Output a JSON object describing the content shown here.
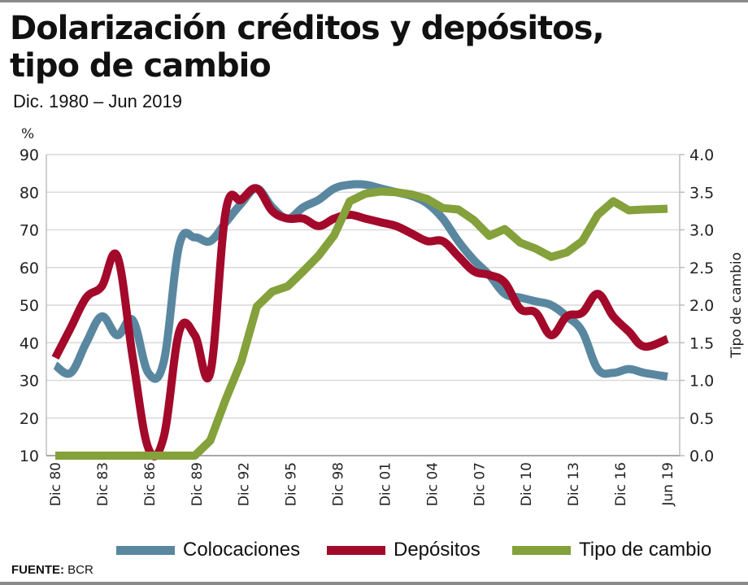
{
  "title_line1": "Dolarización créditos y depósitos,",
  "title_line2": "tipo de cambio",
  "subtitle": "Dic. 1980 – Jun 2019",
  "source_label": "FUENTE:",
  "source_value": " BCR",
  "colors": {
    "colocaciones": "#5a87a0",
    "depositos": "#a3092a",
    "tipo_cambio": "#84a13b",
    "grid": "#d9d9d9",
    "axis": "#bdbdbd"
  },
  "chart_data": {
    "type": "line",
    "title": "Dolarización créditos y depósitos, tipo de cambio",
    "subtitle": "Dic. 1980 – Jun 2019",
    "ylabel_left": "%",
    "ylabel_right": "Tipo de cambio",
    "ylim_left": [
      10,
      90
    ],
    "ylim_right": [
      0.0,
      4.0
    ],
    "yticks_left": [
      "90",
      "80",
      "70",
      "60",
      "50",
      "40",
      "30",
      "20",
      "10"
    ],
    "yticks_right": [
      "4.0",
      "3.5",
      "3.0",
      "2.5",
      "2.0",
      "1.5",
      "1.0",
      "0.5",
      "0.0"
    ],
    "xticks": [
      "Dic 80",
      "Dic 83",
      "Dic 86",
      "Dic 89",
      "Dic 92",
      "Dic 95",
      "Dic 98",
      "Dic 01",
      "Dic 04",
      "Dic 07",
      "Dic 10",
      "Dic 13",
      "Dic 16",
      "Jun 19"
    ],
    "grid": true,
    "legend_position": "bottom",
    "x": [
      1980,
      1981,
      1982,
      1983,
      1984,
      1985,
      1986,
      1987,
      1988,
      1989,
      1990,
      1991,
      1992,
      1993,
      1994,
      1995,
      1996,
      1997,
      1998,
      1999,
      2000,
      2001,
      2002,
      2003,
      2004,
      2005,
      2006,
      2007,
      2008,
      2009,
      2010,
      2011,
      2012,
      2013,
      2014,
      2015,
      2016,
      2017,
      2018,
      2019.5
    ],
    "series": [
      {
        "name": "Colocaciones",
        "axis": "left",
        "color_key": "colocaciones",
        "values": [
          34,
          32,
          40,
          47,
          42,
          46,
          32,
          35,
          66,
          68,
          67,
          72,
          77,
          81,
          76,
          73,
          76,
          78,
          81,
          82,
          82,
          81,
          80,
          79,
          77,
          73,
          67,
          62,
          58,
          53,
          52,
          51,
          50,
          47,
          43,
          33,
          32,
          33,
          32,
          31
        ]
      },
      {
        "name": "Depósitos",
        "axis": "left",
        "color_key": "depositos",
        "values": [
          36,
          44,
          52,
          55,
          63,
          36,
          12,
          15,
          43,
          42,
          32,
          75,
          78,
          81,
          75,
          73,
          73,
          71,
          73,
          74,
          73,
          72,
          71,
          69,
          67,
          67,
          63,
          59,
          58,
          56,
          49,
          48,
          42,
          47,
          48,
          53,
          47,
          43,
          39,
          41
        ]
      },
      {
        "name": "Tipo de cambio",
        "axis": "right",
        "color_key": "tipo_cambio",
        "values": [
          0.0,
          0.0,
          0.0,
          0.0,
          0.0,
          0.0,
          0.0,
          0.0,
          0.0,
          0.0,
          0.2,
          0.75,
          1.25,
          1.98,
          2.18,
          2.25,
          2.45,
          2.66,
          2.93,
          3.38,
          3.48,
          3.51,
          3.5,
          3.47,
          3.41,
          3.29,
          3.27,
          3.13,
          2.92,
          3.01,
          2.83,
          2.75,
          2.64,
          2.7,
          2.85,
          3.2,
          3.38,
          3.26,
          3.27,
          3.28
        ]
      }
    ]
  },
  "legend": [
    {
      "label": "Colocaciones",
      "color_key": "colocaciones"
    },
    {
      "label": "Depósitos",
      "color_key": "depositos"
    },
    {
      "label": "Tipo de cambio",
      "color_key": "tipo_cambio"
    }
  ]
}
